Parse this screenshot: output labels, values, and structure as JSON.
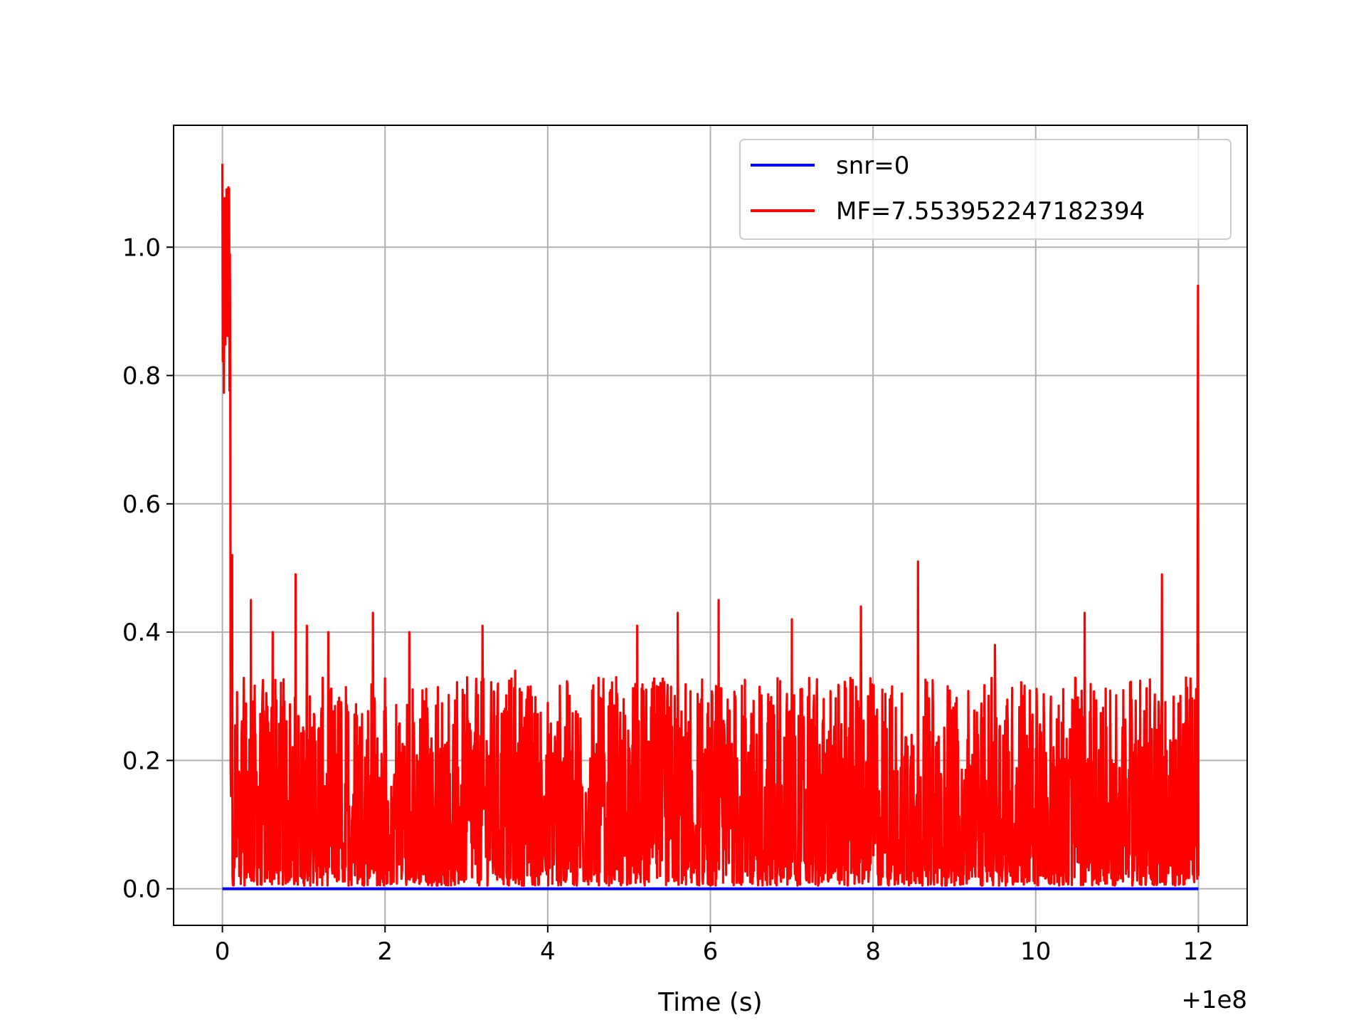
{
  "chart_data": {
    "type": "line",
    "title": "",
    "xlabel": "Time (s)",
    "ylabel": "",
    "x_offset_label": "+1e8",
    "xlim": [
      -0.6,
      12.6
    ],
    "ylim": [
      -0.057,
      1.19
    ],
    "xticks": [
      0,
      2,
      4,
      6,
      8,
      10,
      12
    ],
    "xtick_labels": [
      "0",
      "2",
      "4",
      "6",
      "8",
      "10",
      "12"
    ],
    "yticks": [
      0.0,
      0.2,
      0.4,
      0.6,
      0.8,
      1.0
    ],
    "ytick_labels": [
      "0.0",
      "0.2",
      "0.4",
      "0.6",
      "0.8",
      "1.0"
    ],
    "grid": true,
    "legend_placement": "top-right",
    "series": [
      {
        "name": "snr=0",
        "color": "#0000ff",
        "x": [
          0,
          12
        ],
        "y": [
          0.0,
          0.0
        ]
      },
      {
        "name": "MF=7.553952247182394",
        "color": "#ff0000",
        "x_range": [
          0,
          12
        ],
        "peaks": [
          {
            "x": 0.0,
            "y": 1.13
          },
          {
            "x": 0.05,
            "y": 1.09
          },
          {
            "x": 0.12,
            "y": 0.52
          },
          {
            "x": 0.35,
            "y": 0.45
          },
          {
            "x": 0.62,
            "y": 0.4
          },
          {
            "x": 0.9,
            "y": 0.49
          },
          {
            "x": 1.04,
            "y": 0.41
          },
          {
            "x": 1.3,
            "y": 0.4
          },
          {
            "x": 1.85,
            "y": 0.43
          },
          {
            "x": 2.3,
            "y": 0.4
          },
          {
            "x": 3.2,
            "y": 0.41
          },
          {
            "x": 3.6,
            "y": 0.34
          },
          {
            "x": 5.1,
            "y": 0.41
          },
          {
            "x": 5.6,
            "y": 0.43
          },
          {
            "x": 6.1,
            "y": 0.45
          },
          {
            "x": 7.0,
            "y": 0.42
          },
          {
            "x": 7.85,
            "y": 0.44
          },
          {
            "x": 8.55,
            "y": 0.51
          },
          {
            "x": 9.5,
            "y": 0.38
          },
          {
            "x": 10.6,
            "y": 0.43
          },
          {
            "x": 11.55,
            "y": 0.49
          },
          {
            "x": 12.0,
            "y": 0.94
          }
        ],
        "baseline_range": [
          0.005,
          0.33
        ]
      }
    ]
  }
}
